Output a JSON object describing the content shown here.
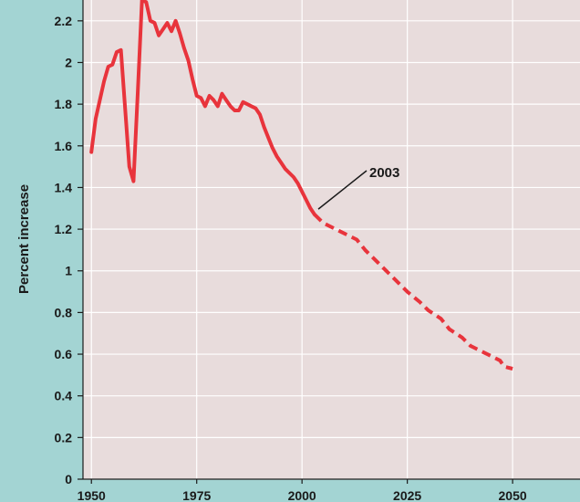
{
  "chart_data": {
    "type": "line",
    "title": "",
    "xlabel": "",
    "ylabel": "Percent increase",
    "xlim": [
      1948,
      2066
    ],
    "ylim": [
      0,
      2.3
    ],
    "x_ticks": [
      1950,
      1975,
      2000,
      2025,
      2050
    ],
    "x_tick_labels": [
      "1950",
      "1975",
      "2000",
      "2025",
      "2050"
    ],
    "y_ticks": [
      0,
      0.2,
      0.4,
      0.6,
      0.8,
      1,
      1.2,
      1.4,
      1.6,
      1.8,
      2,
      2.2
    ],
    "y_tick_labels": [
      "0",
      "0.2",
      "0.4",
      "0.6",
      "0.8",
      "1",
      "1.2",
      "1.4",
      "1.6",
      "1.8",
      "2",
      "2.2"
    ],
    "grid": true,
    "line_color": "#e8343c",
    "plot_background": "#e8dcdc",
    "outer_background": "#a3d4d3",
    "grid_color": "#ffffff",
    "series": [
      {
        "style": "solid",
        "points": [
          [
            1950,
            1.57
          ],
          [
            1951,
            1.73
          ],
          [
            1952,
            1.82
          ],
          [
            1953,
            1.91
          ],
          [
            1954,
            1.98
          ],
          [
            1955,
            1.99
          ],
          [
            1956,
            2.05
          ],
          [
            1957,
            2.06
          ],
          [
            1958,
            1.78
          ],
          [
            1959,
            1.5
          ],
          [
            1960,
            1.43
          ],
          [
            1961,
            1.85
          ],
          [
            1962,
            2.3
          ],
          [
            1963,
            2.29
          ],
          [
            1964,
            2.2
          ],
          [
            1965,
            2.19
          ],
          [
            1966,
            2.13
          ],
          [
            1967,
            2.16
          ],
          [
            1968,
            2.19
          ],
          [
            1969,
            2.15
          ],
          [
            1970,
            2.2
          ],
          [
            1971,
            2.14
          ],
          [
            1972,
            2.07
          ],
          [
            1973,
            2.01
          ],
          [
            1974,
            1.92
          ],
          [
            1975,
            1.84
          ],
          [
            1976,
            1.83
          ],
          [
            1977,
            1.79
          ],
          [
            1978,
            1.84
          ],
          [
            1979,
            1.82
          ],
          [
            1980,
            1.79
          ],
          [
            1981,
            1.85
          ],
          [
            1982,
            1.82
          ],
          [
            1983,
            1.79
          ],
          [
            1984,
            1.77
          ],
          [
            1985,
            1.77
          ],
          [
            1986,
            1.81
          ],
          [
            1987,
            1.8
          ],
          [
            1988,
            1.79
          ],
          [
            1989,
            1.78
          ],
          [
            1990,
            1.75
          ],
          [
            1991,
            1.69
          ],
          [
            1992,
            1.64
          ],
          [
            1993,
            1.59
          ],
          [
            1994,
            1.55
          ],
          [
            1995,
            1.52
          ],
          [
            1996,
            1.49
          ],
          [
            1997,
            1.47
          ],
          [
            1998,
            1.45
          ],
          [
            1999,
            1.42
          ],
          [
            2000,
            1.38
          ],
          [
            2001,
            1.34
          ],
          [
            2002,
            1.3
          ],
          [
            2003,
            1.27
          ]
        ]
      },
      {
        "style": "dashed",
        "points": [
          [
            2003,
            1.27
          ],
          [
            2005,
            1.23
          ],
          [
            2008,
            1.2
          ],
          [
            2010,
            1.18
          ],
          [
            2013,
            1.15
          ],
          [
            2015,
            1.1
          ],
          [
            2018,
            1.04
          ],
          [
            2020,
            1.0
          ],
          [
            2023,
            0.94
          ],
          [
            2025,
            0.9
          ],
          [
            2028,
            0.85
          ],
          [
            2030,
            0.81
          ],
          [
            2033,
            0.77
          ],
          [
            2035,
            0.72
          ],
          [
            2038,
            0.68
          ],
          [
            2040,
            0.64
          ],
          [
            2043,
            0.61
          ],
          [
            2045,
            0.59
          ],
          [
            2047,
            0.57
          ],
          [
            2048,
            0.54
          ],
          [
            2050,
            0.53
          ]
        ]
      }
    ],
    "annotation": {
      "text": "2003",
      "x": 2003,
      "y": 1.27
    }
  }
}
